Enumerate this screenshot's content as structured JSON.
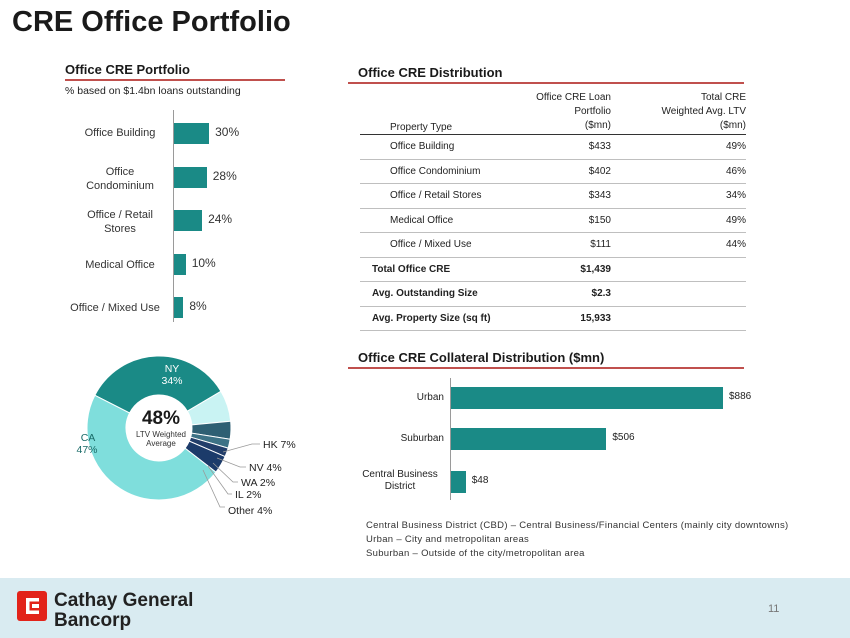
{
  "title": "CRE Office Portfolio",
  "portfolio": {
    "heading": "Office CRE Portfolio",
    "subtitle": "% based on $1.4bn loans outstanding",
    "bars": [
      {
        "label": "Office Building",
        "value": 30,
        "display": "30%"
      },
      {
        "label": "Office Condominium",
        "value": 28,
        "display": "28%"
      },
      {
        "label": "Office / Retail Stores",
        "value": 24,
        "display": "24%"
      },
      {
        "label": "Medical Office",
        "value": 10,
        "display": "10%"
      },
      {
        "label": "Office / Mixed Use",
        "value": 8,
        "display": "8%"
      }
    ]
  },
  "distribution": {
    "heading": "Office CRE Distribution",
    "columns": [
      "Property Type",
      "Office CRE Loan Portfolio ($mn)",
      "Total CRE Weighted Avg. LTV ($mn)"
    ],
    "col1": {
      "line1": "Office CRE Loan",
      "line2": "Portfolio",
      "line3": "($mn)"
    },
    "col2": {
      "line1": "Total CRE",
      "line2": "Weighted Avg. LTV",
      "line3": "($mn)"
    },
    "rows": [
      {
        "type": "Office Building",
        "loan": "$433",
        "ltv": "49%"
      },
      {
        "type": "Office Condominium",
        "loan": "$402",
        "ltv": "46%"
      },
      {
        "type": "Office / Retail Stores",
        "loan": "$343",
        "ltv": "34%"
      },
      {
        "type": "Medical Office",
        "loan": "$150",
        "ltv": "49%"
      },
      {
        "type": "Office / Mixed Use",
        "loan": "$111",
        "ltv": "44%"
      }
    ],
    "totals": [
      {
        "label": "Total Office CRE",
        "value": "$1,439"
      },
      {
        "label": "Avg. Outstanding Size",
        "value": "$2.3"
      },
      {
        "label": "Avg. Property Size (sq ft)",
        "value": "15,933"
      }
    ]
  },
  "donut": {
    "center_value": "48%",
    "center_label_1": "LTV Weighted",
    "center_label_2": "Average",
    "slices": [
      {
        "name": "NY",
        "value": 34,
        "display": "34%",
        "color": "#1a8a86"
      },
      {
        "name": "HK",
        "value": 7,
        "display": "7%",
        "color": "#c9f3f3"
      },
      {
        "name": "NV",
        "value": 4,
        "display": "4%",
        "color": "#2e5f73"
      },
      {
        "name": "WA",
        "value": 2,
        "display": "2%",
        "color": "#3d7286"
      },
      {
        "name": "IL",
        "value": 2,
        "display": "2%",
        "color": "#223e6a"
      },
      {
        "name": "Other",
        "value": 4,
        "display": "4%",
        "color": "#1c3b6a"
      },
      {
        "name": "CA",
        "value": 47,
        "display": "47%",
        "color": "#7fdedc"
      }
    ],
    "labels": {
      "ny": "NY",
      "ny_pct": "34%",
      "ca": "CA",
      "ca_pct": "47%",
      "hk": "HK 7%",
      "nv": "NV 4%",
      "wa": "WA 2%",
      "il": "IL  2%",
      "other": "Other 4%"
    }
  },
  "collateral": {
    "heading": "Office CRE Collateral Distribution ($mn)",
    "bars": [
      {
        "label": "Urban",
        "value": 886,
        "display": "$886"
      },
      {
        "label": "Suburban",
        "value": 506,
        "display": "$506"
      },
      {
        "label": "Central Business District",
        "value": 48,
        "display": "$48"
      }
    ],
    "footnotes": [
      "Central Business District (CBD) – Central Business/Financial Centers (mainly city downtowns)",
      "Urban – City and metropolitan areas",
      "Suburban – Outside of the city/metropolitan area"
    ]
  },
  "footer": {
    "brand_line1": "Cathay General",
    "brand_line2": "Bancorp",
    "page": "11",
    "brand_color": "#e2231a",
    "band_color": "#d9ebf1"
  },
  "chart_data": [
    {
      "type": "bar",
      "title": "Office CRE Portfolio",
      "subtitle": "% based on $1.4bn loans outstanding",
      "categories": [
        "Office Building",
        "Office Condominium",
        "Office / Retail Stores",
        "Medical Office",
        "Office / Mixed Use"
      ],
      "values": [
        30,
        28,
        24,
        10,
        8
      ],
      "orientation": "horizontal",
      "unit": "%"
    },
    {
      "type": "pie",
      "title": "LTV Weighted Average 48%",
      "categories": [
        "NY",
        "HK",
        "NV",
        "WA",
        "IL",
        "Other",
        "CA"
      ],
      "values": [
        34,
        7,
        4,
        2,
        2,
        4,
        47
      ],
      "unit": "%"
    },
    {
      "type": "bar",
      "title": "Office CRE Collateral Distribution ($mn)",
      "categories": [
        "Urban",
        "Suburban",
        "Central Business District"
      ],
      "values": [
        886,
        506,
        48
      ],
      "orientation": "horizontal",
      "unit": "$mn"
    }
  ]
}
